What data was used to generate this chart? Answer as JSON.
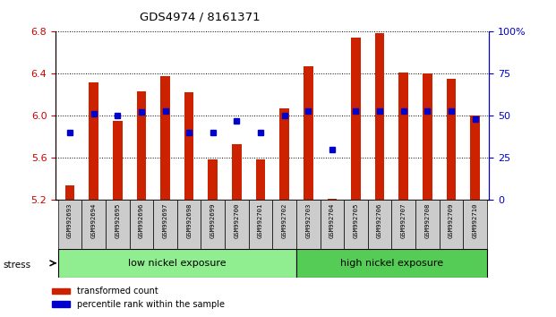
{
  "title": "GDS4974 / 8161371",
  "samples": [
    "GSM992693",
    "GSM992694",
    "GSM992695",
    "GSM992696",
    "GSM992697",
    "GSM992698",
    "GSM992699",
    "GSM992700",
    "GSM992701",
    "GSM992702",
    "GSM992703",
    "GSM992704",
    "GSM992705",
    "GSM992706",
    "GSM992707",
    "GSM992708",
    "GSM992709",
    "GSM992710"
  ],
  "red_values": [
    5.34,
    6.32,
    5.95,
    6.23,
    6.38,
    6.22,
    5.58,
    5.73,
    5.58,
    6.07,
    6.47,
    5.21,
    6.74,
    6.79,
    6.41,
    6.4,
    6.35,
    6.0
  ],
  "blue_pct": [
    40,
    51,
    50,
    52,
    53,
    40,
    40,
    47,
    40,
    50,
    53,
    30,
    53,
    53,
    53,
    53,
    53,
    48
  ],
  "ylim_left": [
    5.2,
    6.8
  ],
  "ylim_right": [
    0,
    100
  ],
  "yticks_left": [
    5.2,
    5.6,
    6.0,
    6.4,
    6.8
  ],
  "yticks_right": [
    0,
    25,
    50,
    75,
    100
  ],
  "base": 5.2,
  "groups": [
    {
      "label": "low nickel exposure",
      "start": 0,
      "end": 10,
      "color": "#90EE90"
    },
    {
      "label": "high nickel exposure",
      "start": 10,
      "end": 18,
      "color": "#55CC55"
    }
  ],
  "stress_label": "stress",
  "legend_red": "transformed count",
  "legend_blue": "percentile rank within the sample",
  "bar_color": "#CC2200",
  "dot_color": "#0000CC",
  "left_axis_color": "#CC0000",
  "right_axis_color": "#0000CC"
}
